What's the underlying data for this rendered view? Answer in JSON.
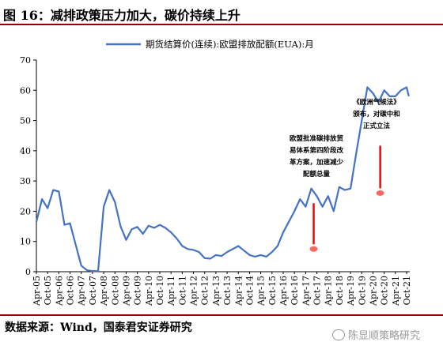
{
  "figure_title": "图 16：减排政策压力加大，碳价持续上升",
  "source": "数据来源：Wind，国泰君安证券研究",
  "watermark": "陈显顺策略研究",
  "colors": {
    "line": "#4472C4",
    "rule": "#8b0000",
    "highlight": "#ff0000"
  },
  "chart_data": {
    "type": "line",
    "title": "",
    "xlabel": "",
    "ylabel": "",
    "ylim": [
      0,
      70
    ],
    "yticks": [
      0,
      10,
      20,
      30,
      40,
      50,
      60,
      70
    ],
    "grid": false,
    "legend_position": "top-center",
    "categories": [
      "Apr-05",
      "Oct-05",
      "Apr-06",
      "Oct-06",
      "Apr-07",
      "Oct-07",
      "Apr-08",
      "Oct-08",
      "Apr-09",
      "Oct-09",
      "Apr-10",
      "Oct-10",
      "Apr-11",
      "Oct-11",
      "Apr-12",
      "Oct-12",
      "Apr-13",
      "Oct-13",
      "Apr-14",
      "Oct-14",
      "Apr-15",
      "Oct-15",
      "Apr-16",
      "Oct-16",
      "Apr-17",
      "Oct-17",
      "Apr-18",
      "Oct-18",
      "Apr-19",
      "Oct-19",
      "Apr-20",
      "Oct-20",
      "Apr-21",
      "Oct-21"
    ],
    "series": [
      {
        "name": "期货结算价(连续):欧盟排放配额(EUA):月",
        "x": [
          0,
          0.5,
          1,
          1.5,
          2,
          2.5,
          3,
          3.5,
          4,
          4.5,
          5,
          5.5,
          6,
          6.5,
          7,
          7.5,
          8,
          8.5,
          9,
          9.5,
          10,
          10.5,
          11,
          11.5,
          12,
          12.5,
          13,
          13.5,
          14,
          14.5,
          15,
          15.5,
          16,
          16.5,
          17,
          17.5,
          18,
          18.5,
          19,
          19.5,
          20,
          20.5,
          21,
          21.5,
          22,
          22.5,
          23,
          23.5,
          24,
          24.5,
          25,
          25.5,
          26,
          26.5,
          27,
          27.5,
          28,
          28.5,
          29,
          29.5,
          30,
          30.5,
          31,
          31.5,
          32,
          32.5,
          33,
          33.2
        ],
        "values": [
          16.5,
          24,
          21,
          27,
          26.5,
          15.5,
          16,
          9,
          2,
          0.5,
          0.2,
          0.2,
          21.5,
          27,
          23,
          15,
          10.5,
          14,
          14.8,
          12.5,
          15.2,
          14.5,
          15.5,
          14.5,
          13,
          11,
          8.5,
          7.5,
          7.2,
          6.5,
          4.5,
          4.3,
          5.5,
          5.2,
          6.5,
          7.5,
          8.5,
          7,
          5.5,
          5,
          5.5,
          5,
          6.5,
          8.5,
          13,
          16.5,
          20,
          24,
          21.5,
          27.5,
          25,
          21.5,
          25,
          20,
          28,
          27,
          27.5,
          39,
          50,
          61,
          59,
          56,
          60,
          58,
          58,
          60,
          61,
          58
        ]
      }
    ],
    "annotations": [
      {
        "label": "欧盟批准碳排放贸易体系第四阶段改革方案，加速减少配额总量",
        "x": 25,
        "y": 7.5
      },
      {
        "label": "《欧洲气候法》颁布，对碳中和正式立法",
        "x": 31,
        "y": 26
      }
    ]
  }
}
